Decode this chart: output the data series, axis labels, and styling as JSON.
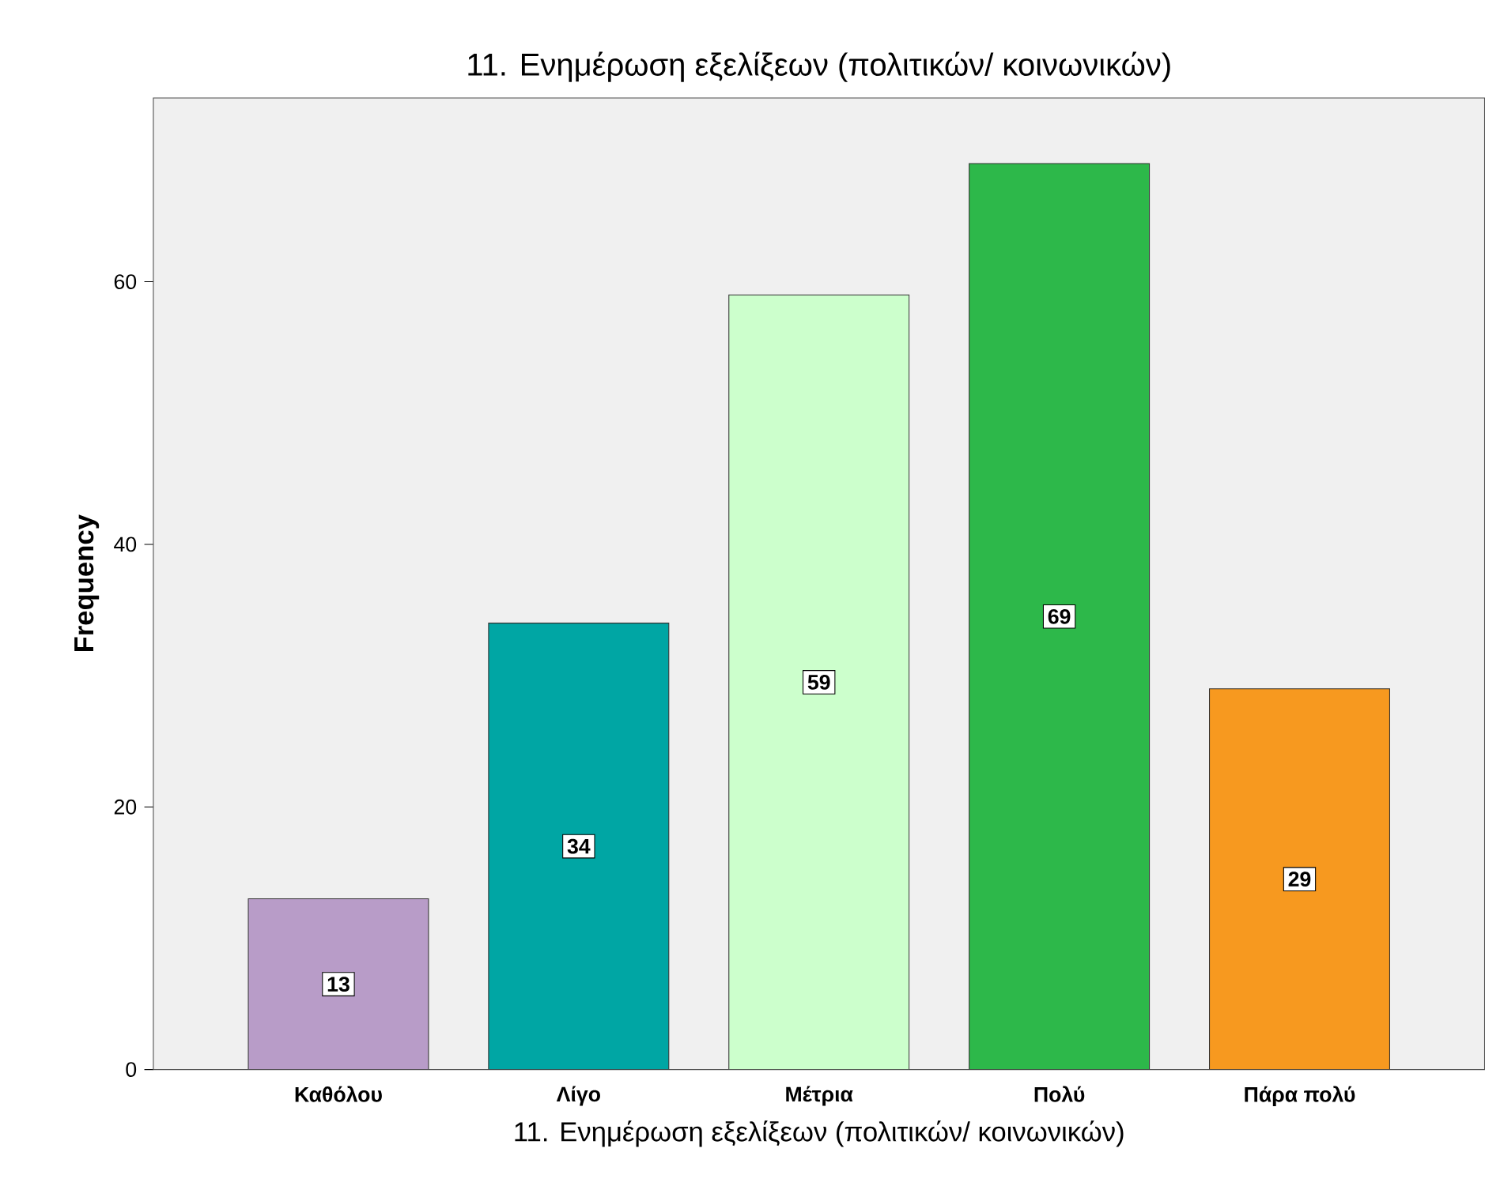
{
  "chart_data": {
    "type": "bar",
    "title": "11. Ενημέρωση εξελίξεων (πολιτικών/ κοινωνικών)",
    "xlabel": "11. Ενημέρωση εξελίξεων (πολιτικών/ κοινωνικών)",
    "ylabel": "Frequency",
    "categories": [
      "Καθόλου",
      "Λίγο",
      "Μέτρια",
      "Πολύ",
      "Πάρα πολύ"
    ],
    "values": [
      13,
      34,
      59,
      69,
      29
    ],
    "colors": [
      "#b89cc8",
      "#00a6a4",
      "#ccffcc",
      "#2db84a",
      "#f7991f"
    ],
    "ylim": [
      0,
      74
    ],
    "yticks": [
      0,
      20,
      40,
      60
    ],
    "data_labels": true
  }
}
